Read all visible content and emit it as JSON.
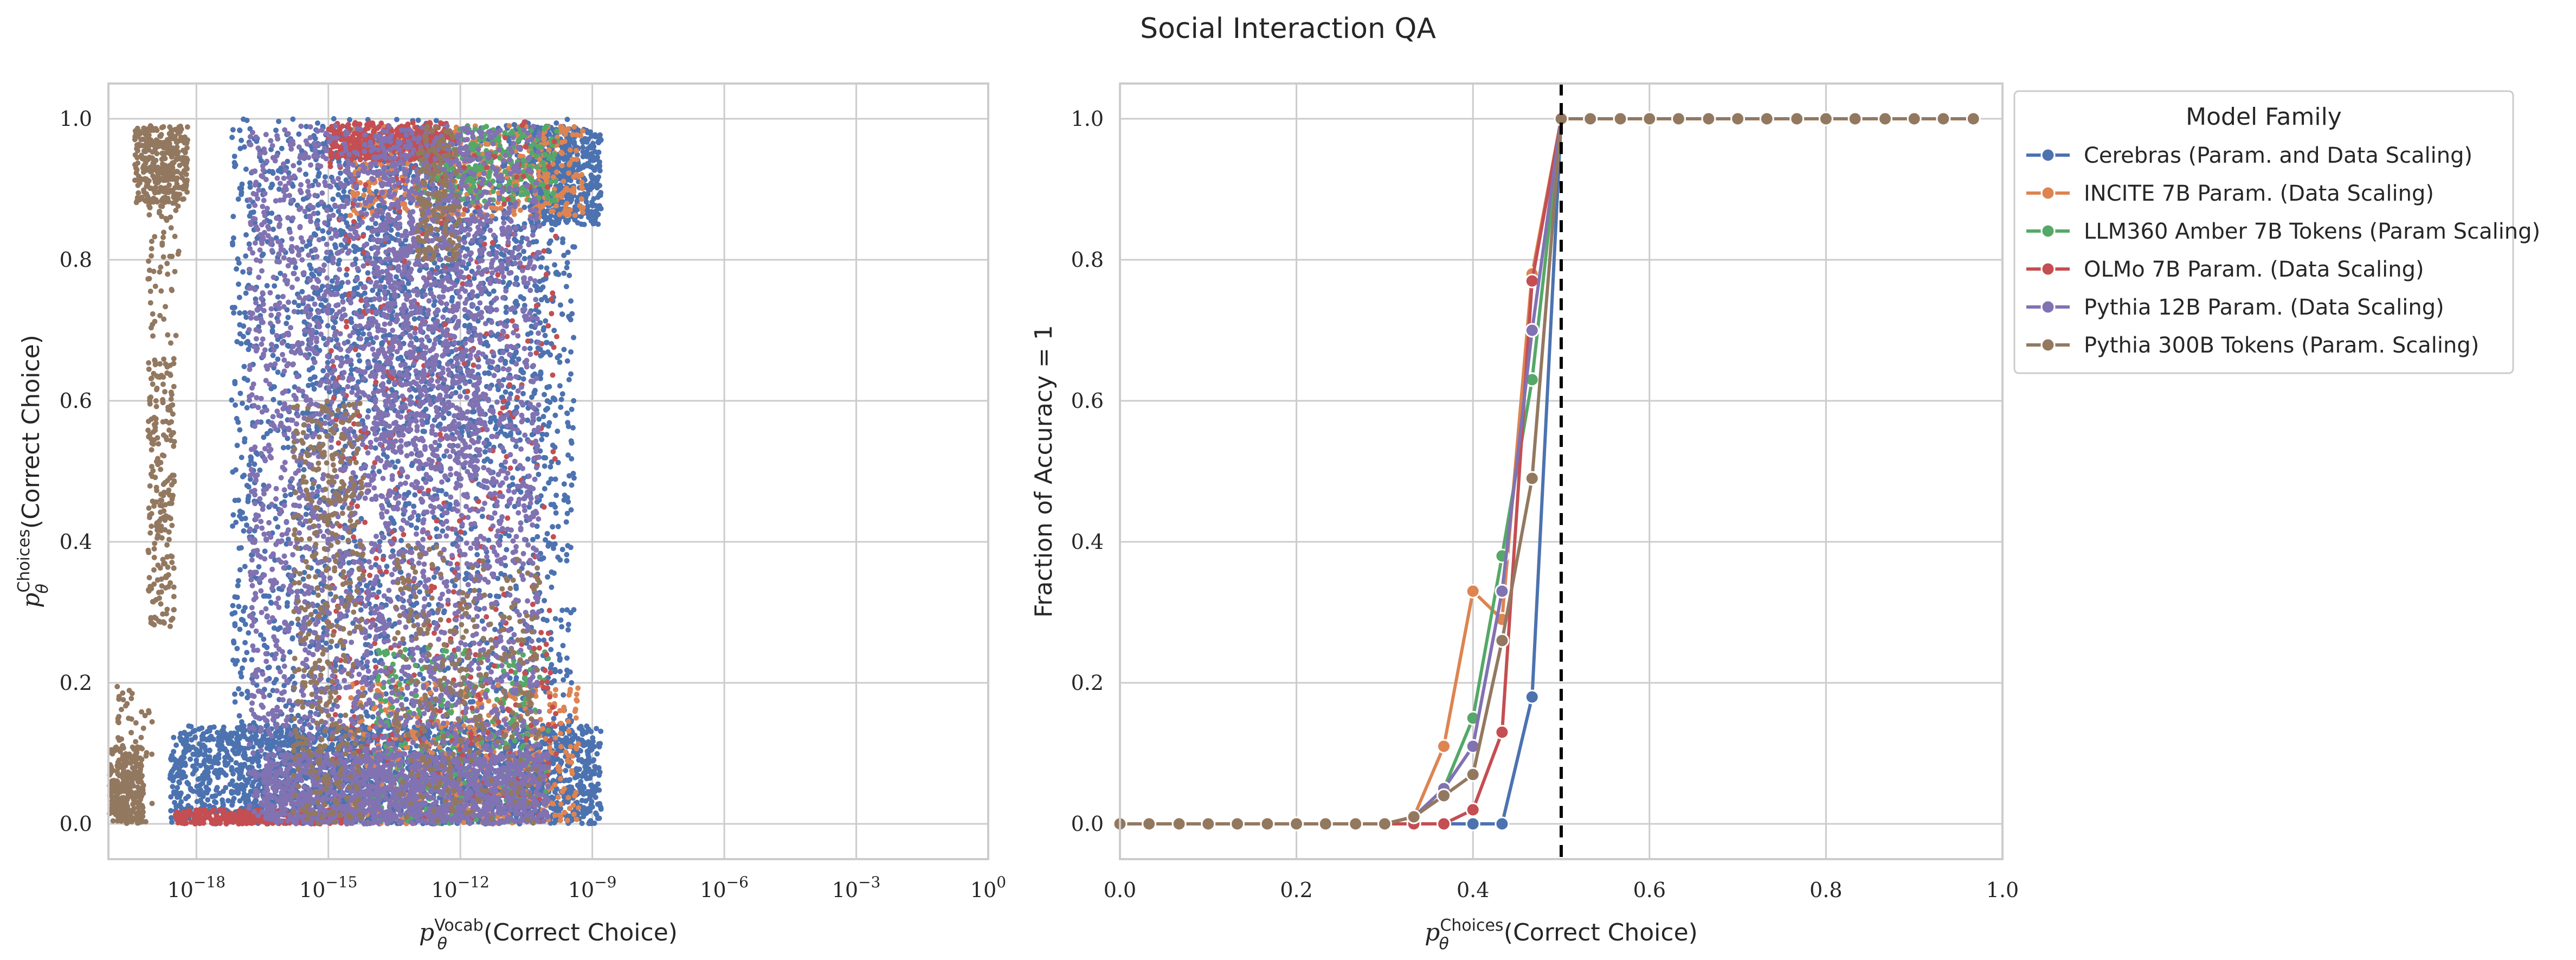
{
  "figure": {
    "title": "Social Interaction QA"
  },
  "chart_data": [
    {
      "type": "scatter",
      "xscale": "log",
      "xlim": [
        1e-20,
        1
      ],
      "ylim": [
        -0.05,
        1.05
      ],
      "x_ticks": [
        1e-18,
        1e-15,
        1e-12,
        1e-09,
        1e-06,
        0.001,
        1
      ],
      "x_tick_labels": [
        {
          "base": "10",
          "exp": "−18"
        },
        {
          "base": "10",
          "exp": "−15"
        },
        {
          "base": "10",
          "exp": "−12"
        },
        {
          "base": "10",
          "exp": "−9"
        },
        {
          "base": "10",
          "exp": "−6"
        },
        {
          "base": "10",
          "exp": "−3"
        },
        {
          "base": "10",
          "exp": "0"
        }
      ],
      "y_ticks": [
        0.0,
        0.2,
        0.4,
        0.6,
        0.8,
        1.0
      ],
      "y_tick_labels": [
        "0.0",
        "0.2",
        "0.4",
        "0.6",
        "0.8",
        "1.0"
      ],
      "xlabel": {
        "p": "p",
        "sub": "θ",
        "sup": "Vocab",
        "rest": "(Correct Choice)"
      },
      "ylabel": {
        "p": "p",
        "sub": "θ",
        "sup": "Choices",
        "rest": "(Correct Choice)"
      },
      "grid": true,
      "series_clouds": [
        {
          "color": "#4c72b0",
          "regions": [
            {
              "lx": [
                -18.6,
                -8.8
              ],
              "y": [
                0.0,
                0.14
              ],
              "n": 2200
            },
            {
              "lx": [
                -17.2,
                -9.4
              ],
              "y": [
                0.0,
                1.0
              ],
              "n": 2400
            },
            {
              "lx": [
                -10.4,
                -8.8
              ],
              "y": [
                0.85,
                0.99
              ],
              "n": 500
            },
            {
              "lx": [
                -15.5,
                -10.0
              ],
              "y": [
                0.55,
                0.99
              ],
              "n": 800
            }
          ]
        },
        {
          "color": "#dd8452",
          "regions": [
            {
              "lx": [
                -14.5,
                -9.3
              ],
              "y": [
                0.0,
                0.2
              ],
              "n": 500
            },
            {
              "lx": [
                -14.5,
                -9.2
              ],
              "y": [
                0.86,
                0.99
              ],
              "n": 500
            }
          ]
        },
        {
          "color": "#55a868",
          "regions": [
            {
              "lx": [
                -14.0,
                -10.0
              ],
              "y": [
                0.0,
                0.25
              ],
              "n": 300
            },
            {
              "lx": [
                -13.0,
                -9.8
              ],
              "y": [
                0.88,
                0.99
              ],
              "n": 300
            }
          ]
        },
        {
          "color": "#c44e52",
          "regions": [
            {
              "lx": [
                -18.5,
                -14.5
              ],
              "y": [
                0.0,
                0.02
              ],
              "n": 350
            },
            {
              "lx": [
                -15.0,
                -9.8
              ],
              "y": [
                0.0,
                1.0
              ],
              "n": 500
            },
            {
              "lx": [
                -15.0,
                -12.2
              ],
              "y": [
                0.94,
                0.995
              ],
              "n": 400
            }
          ]
        },
        {
          "color": "#8172b2",
          "regions": [
            {
              "lx": [
                -16.8,
                -10.2
              ],
              "y": [
                0.0,
                0.99
              ],
              "n": 3200
            },
            {
              "lx": [
                -16.5,
                -10.0
              ],
              "y": [
                0.0,
                0.1
              ],
              "n": 1200
            },
            {
              "lx": [
                -14.0,
                -11.5
              ],
              "y": [
                0.5,
                0.99
              ],
              "n": 600
            }
          ]
        },
        {
          "color": "#937860",
          "regions": [
            {
              "lx": [
                -20.0,
                -19.2
              ],
              "y": [
                0.0,
                0.11
              ],
              "n": 300
            },
            {
              "lx": [
                -19.4,
                -18.2
              ],
              "y": [
                0.88,
                0.99
              ],
              "n": 350
            },
            {
              "lx": [
                -19.1,
                -18.4
              ],
              "y": [
                0.68,
                0.9
              ],
              "n": 60
            },
            {
              "lx": [
                -19.1,
                -18.5
              ],
              "y": [
                0.28,
                0.66
              ],
              "n": 220
            },
            {
              "lx": [
                -19.8,
                -19.0
              ],
              "y": [
                0.0,
                0.2
              ],
              "n": 60
            },
            {
              "lx": [
                -15.8,
                -14.2
              ],
              "y": [
                0.0,
                0.6
              ],
              "n": 400
            },
            {
              "lx": [
                -13.5,
                -10.2
              ],
              "y": [
                0.0,
                0.4
              ],
              "n": 300
            },
            {
              "lx": [
                -13.0,
                -12.0
              ],
              "y": [
                0.8,
                0.99
              ],
              "n": 150
            }
          ]
        }
      ]
    },
    {
      "type": "line",
      "xlim": [
        0.0,
        1.0
      ],
      "ylim": [
        -0.05,
        1.05
      ],
      "x_ticks": [
        0.0,
        0.2,
        0.4,
        0.6,
        0.8,
        1.0
      ],
      "x_tick_labels": [
        "0.0",
        "0.2",
        "0.4",
        "0.6",
        "0.8",
        "1.0"
      ],
      "y_ticks": [
        0.0,
        0.2,
        0.4,
        0.6,
        0.8,
        1.0
      ],
      "y_tick_labels": [
        "0.0",
        "0.2",
        "0.4",
        "0.6",
        "0.8",
        "1.0"
      ],
      "xlabel": {
        "p": "p",
        "sub": "θ",
        "sup": "Choices",
        "rest": "(Correct Choice)"
      },
      "ylabel": "Fraction of Accuracy = 1",
      "grid": true,
      "vline": {
        "x": 0.5,
        "style": "dashed",
        "color": "#000000"
      },
      "legend": {
        "title": "Model Family",
        "placement": "outside-right"
      },
      "series": [
        {
          "name": "Cerebras (Param. and Data Scaling)",
          "color": "#4c72b0",
          "x": [
            0.0,
            0.033,
            0.067,
            0.1,
            0.133,
            0.167,
            0.2,
            0.233,
            0.267,
            0.3,
            0.333,
            0.367,
            0.4,
            0.433,
            0.467,
            0.5
          ],
          "y": [
            0,
            0,
            0,
            0,
            0,
            0,
            0,
            0,
            0,
            0,
            0,
            0,
            0,
            0,
            0.18,
            1.0
          ]
        },
        {
          "name": "INCITE 7B Param. (Data Scaling)",
          "color": "#dd8452",
          "x": [
            0.0,
            0.033,
            0.067,
            0.1,
            0.133,
            0.167,
            0.2,
            0.233,
            0.267,
            0.3,
            0.333,
            0.367,
            0.4,
            0.433,
            0.467,
            0.5
          ],
          "y": [
            0,
            0,
            0,
            0,
            0,
            0,
            0,
            0,
            0,
            0,
            0.01,
            0.11,
            0.33,
            0.29,
            0.78,
            1.0
          ]
        },
        {
          "name": "LLM360 Amber 7B Tokens (Param Scaling)",
          "color": "#55a868",
          "x": [
            0.0,
            0.033,
            0.067,
            0.1,
            0.133,
            0.167,
            0.2,
            0.233,
            0.267,
            0.3,
            0.333,
            0.367,
            0.4,
            0.433,
            0.467,
            0.5
          ],
          "y": [
            0,
            0,
            0,
            0,
            0,
            0,
            0,
            0,
            0,
            0,
            0.01,
            0.05,
            0.15,
            0.38,
            0.63,
            1.0
          ]
        },
        {
          "name": "OLMo 7B Param. (Data Scaling)",
          "color": "#c44e52",
          "x": [
            0.0,
            0.033,
            0.067,
            0.1,
            0.133,
            0.167,
            0.2,
            0.233,
            0.267,
            0.3,
            0.333,
            0.367,
            0.4,
            0.433,
            0.467,
            0.5
          ],
          "y": [
            0,
            0,
            0,
            0,
            0,
            0,
            0,
            0,
            0,
            0,
            0,
            0,
            0.02,
            0.13,
            0.77,
            1.0
          ]
        },
        {
          "name": "Pythia 12B Param. (Data Scaling)",
          "color": "#8172b2",
          "x": [
            0.0,
            0.033,
            0.067,
            0.1,
            0.133,
            0.167,
            0.2,
            0.233,
            0.267,
            0.3,
            0.333,
            0.367,
            0.4,
            0.433,
            0.467,
            0.5
          ],
          "y": [
            0,
            0,
            0,
            0,
            0,
            0,
            0,
            0,
            0,
            0,
            0.01,
            0.05,
            0.11,
            0.33,
            0.7,
            1.0
          ]
        },
        {
          "name": "Pythia 300B Tokens (Param. Scaling)",
          "color": "#937860",
          "x": [
            0.0,
            0.033,
            0.067,
            0.1,
            0.133,
            0.167,
            0.2,
            0.233,
            0.267,
            0.3,
            0.333,
            0.367,
            0.4,
            0.433,
            0.467,
            0.5,
            0.533,
            0.567,
            0.6,
            0.633,
            0.667,
            0.7,
            0.733,
            0.767,
            0.8,
            0.833,
            0.867,
            0.9,
            0.933,
            0.967
          ],
          "y": [
            0,
            0,
            0,
            0,
            0,
            0,
            0,
            0,
            0,
            0,
            0.01,
            0.04,
            0.07,
            0.26,
            0.49,
            1.0,
            1,
            1,
            1,
            1,
            1,
            1,
            1,
            1,
            1,
            1,
            1,
            1,
            1,
            1
          ]
        }
      ]
    }
  ]
}
